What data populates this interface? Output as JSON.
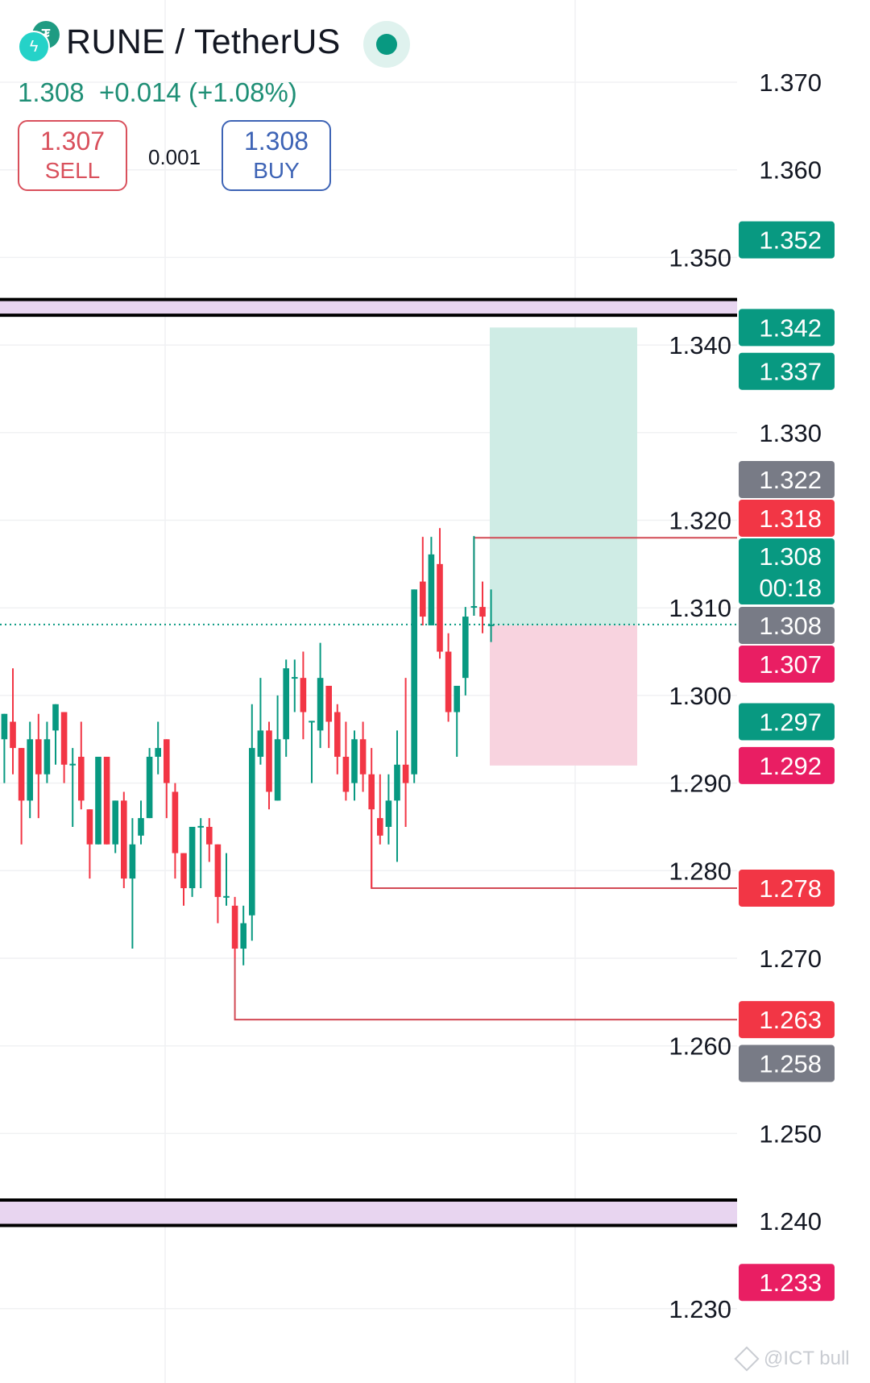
{
  "header": {
    "symbol": "RUNE / TetherUS",
    "last_price": "1.308",
    "change": "+0.014 (+1.08%)",
    "sell_price": "1.307",
    "sell_label": "SELL",
    "spread": "0.001",
    "buy_price": "1.308",
    "buy_label": "BUY",
    "market_status": "live",
    "icons": [
      "tether-coin-icon",
      "rune-coin-icon"
    ]
  },
  "watermark": "@ICT bull",
  "colors": {
    "up": "#089981",
    "down": "#F23645",
    "alert": "#E91E63",
    "neutral": "#787B86",
    "zone_fill": "#E8D5F0",
    "long_profit": "#CFECE5",
    "long_loss": "#F8D3DF"
  },
  "chart_data": {
    "type": "candlestick",
    "title": "",
    "xlabel": "",
    "ylabel": "",
    "ylim": [
      1.222,
      1.378
    ],
    "grid": true,
    "y_ticks": [
      "1.370",
      "1.360",
      "1.350",
      "1.340",
      "1.330",
      "1.320",
      "1.310",
      "1.300",
      "1.290",
      "1.280",
      "1.270",
      "1.260",
      "1.250",
      "1.240",
      "1.230"
    ],
    "candles_ohlc": [
      [
        1.295,
        1.2979,
        1.29,
        1.2979
      ],
      [
        1.297,
        1.3031,
        1.291,
        1.294
      ],
      [
        1.294,
        1.294,
        1.283,
        1.288
      ],
      [
        1.288,
        1.297,
        1.286,
        1.295
      ],
      [
        1.295,
        1.2979,
        1.286,
        1.291
      ],
      [
        1.291,
        1.297,
        1.29,
        1.295
      ],
      [
        1.296,
        1.299,
        1.2921,
        1.299
      ],
      [
        1.2981,
        1.2981,
        1.29,
        1.2921
      ],
      [
        1.2921,
        1.294,
        1.285,
        1.2922
      ],
      [
        1.293,
        1.297,
        1.287,
        1.288
      ],
      [
        1.287,
        1.287,
        1.2791,
        1.283
      ],
      [
        1.283,
        1.293,
        1.283,
        1.293
      ],
      [
        1.293,
        1.293,
        1.283,
        1.283
      ],
      [
        1.283,
        1.288,
        1.282,
        1.288
      ],
      [
        1.288,
        1.289,
        1.278,
        1.2791
      ],
      [
        1.2791,
        1.286,
        1.2711,
        1.283
      ],
      [
        1.284,
        1.288,
        1.283,
        1.286
      ],
      [
        1.286,
        1.294,
        1.286,
        1.293
      ],
      [
        1.293,
        1.297,
        1.291,
        1.294
      ],
      [
        1.295,
        1.295,
        1.286,
        1.29
      ],
      [
        1.289,
        1.29,
        1.2791,
        1.282
      ],
      [
        1.282,
        1.282,
        1.276,
        1.278
      ],
      [
        1.278,
        1.285,
        1.277,
        1.285
      ],
      [
        1.285,
        1.286,
        1.278,
        1.2851
      ],
      [
        1.285,
        1.286,
        1.281,
        1.283
      ],
      [
        1.283,
        1.283,
        1.274,
        1.277
      ],
      [
        1.277,
        1.282,
        1.276,
        1.2771
      ],
      [
        1.276,
        1.277,
        1.27,
        1.2711
      ],
      [
        1.2711,
        1.276,
        1.2692,
        1.274
      ],
      [
        1.2749,
        1.299,
        1.272,
        1.294
      ],
      [
        1.293,
        1.302,
        1.2921,
        1.296
      ],
      [
        1.296,
        1.297,
        1.287,
        1.289
      ],
      [
        1.288,
        1.3,
        1.288,
        1.295
      ],
      [
        1.295,
        1.3041,
        1.293,
        1.3031
      ],
      [
        1.302,
        1.3041,
        1.2981,
        1.3021
      ],
      [
        1.302,
        1.305,
        1.295,
        1.2981
      ],
      [
        1.297,
        1.2971,
        1.29,
        1.2971
      ],
      [
        1.296,
        1.306,
        1.294,
        1.302
      ],
      [
        1.3011,
        1.3011,
        1.294,
        1.297
      ],
      [
        1.2981,
        1.299,
        1.291,
        1.293
      ],
      [
        1.293,
        1.297,
        1.288,
        1.289
      ],
      [
        1.29,
        1.296,
        1.288,
        1.295
      ],
      [
        1.295,
        1.297,
        1.289,
        1.291
      ],
      [
        1.291,
        1.294,
        1.278,
        1.287
      ],
      [
        1.286,
        1.291,
        1.283,
        1.284
      ],
      [
        1.285,
        1.291,
        1.283,
        1.288
      ],
      [
        1.288,
        1.296,
        1.281,
        1.2921
      ],
      [
        1.2921,
        1.302,
        1.285,
        1.29
      ],
      [
        1.291,
        1.3121,
        1.29,
        1.3121
      ],
      [
        1.313,
        1.3181,
        1.308,
        1.309
      ],
      [
        1.308,
        1.3181,
        1.308,
        1.3161
      ],
      [
        1.315,
        1.3191,
        1.3042,
        1.305
      ],
      [
        1.305,
        1.3071,
        1.297,
        1.2981
      ],
      [
        1.2981,
        1.3011,
        1.293,
        1.3011
      ],
      [
        1.302,
        1.3101,
        1.3,
        1.309
      ],
      [
        1.3101,
        1.3182,
        1.3091,
        1.3102
      ],
      [
        1.3101,
        1.313,
        1.3071,
        1.309
      ],
      [
        1.308,
        1.3121,
        1.3061,
        1.3081
      ]
    ],
    "current_price": 1.3081,
    "zones": [
      {
        "top": 1.3452,
        "bottom": 1.3434
      },
      {
        "top": 1.2424,
        "bottom": 1.2395
      }
    ],
    "long_position": {
      "take_profit": 1.342,
      "entry": 1.308,
      "stop": 1.292
    },
    "horizontal_rays": [
      {
        "price": 1.318,
        "from_candle": 55,
        "from_price": 1.3091
      },
      {
        "price": 1.278,
        "from_candle": 43,
        "from_price": 1.288
      },
      {
        "price": 1.263,
        "from_candle": 27,
        "from_price": 1.27
      }
    ],
    "price_badges": [
      {
        "label": "1.352",
        "price": 1.352,
        "kind": "up"
      },
      {
        "label": "1.342",
        "price": 1.342,
        "kind": "up"
      },
      {
        "label": "1.337",
        "price": 1.337,
        "kind": "up"
      },
      {
        "label": "1.322",
        "price": 1.322,
        "kind": "neutral"
      },
      {
        "label": "1.318",
        "price": 1.318,
        "kind": "down"
      },
      {
        "label": "1.308",
        "price": 1.308,
        "kind": "neutral"
      },
      {
        "label": "1.307",
        "price": 1.307,
        "kind": "alert"
      },
      {
        "label": "1.297",
        "price": 1.297,
        "kind": "up"
      },
      {
        "label": "1.292",
        "price": 1.292,
        "kind": "alert"
      },
      {
        "label": "1.278",
        "price": 1.278,
        "kind": "down"
      },
      {
        "label": "1.263",
        "price": 1.263,
        "kind": "down"
      },
      {
        "label": "1.258",
        "price": 1.258,
        "kind": "neutral"
      },
      {
        "label": "1.233",
        "price": 1.233,
        "kind": "alert"
      }
    ],
    "last_price_badge": {
      "price": "1.308",
      "countdown": "00:18"
    }
  }
}
